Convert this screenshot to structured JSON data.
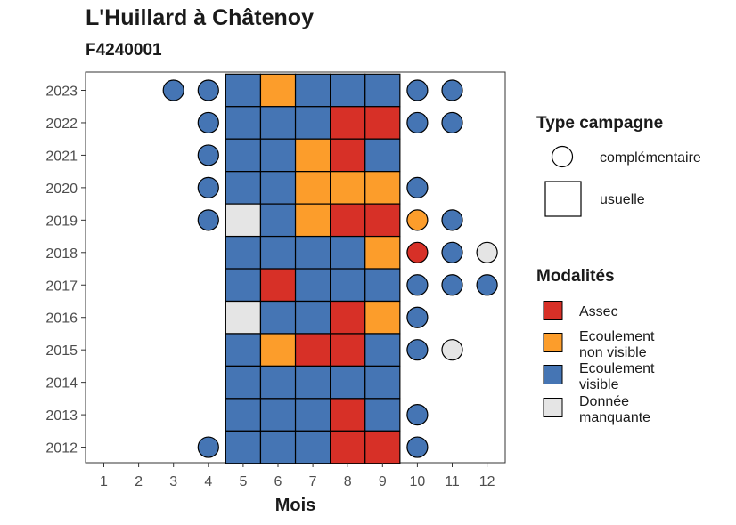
{
  "title": "L'Huillard à Châtenoy",
  "subtitle": "F4240001",
  "colors": {
    "Assec": "#d73027",
    "Ecoulement non visible": "#fc9d2b",
    "Ecoulement visible": "#4575b4",
    "Donnée manquante": "#e5e5e5"
  },
  "legend": {
    "type_title": "Type campagne",
    "type_items": [
      {
        "shape": "circle",
        "label": "complémentaire"
      },
      {
        "shape": "square",
        "label": "usuelle"
      }
    ],
    "mod_title": "Modalités",
    "mod_items": [
      {
        "key": "Assec",
        "lines": [
          "Assec"
        ]
      },
      {
        "key": "Ecoulement non visible",
        "lines": [
          "Ecoulement",
          "non visible"
        ]
      },
      {
        "key": "Ecoulement visible",
        "lines": [
          "Ecoulement",
          "visible"
        ]
      },
      {
        "key": "Donnée manquante",
        "lines": [
          "Donnée",
          "manquante"
        ]
      }
    ]
  },
  "chart_data": {
    "type": "heatmap",
    "xlabel": "Mois",
    "ylabel": "",
    "x_ticks": [
      1,
      2,
      3,
      4,
      5,
      6,
      7,
      8,
      9,
      10,
      11,
      12
    ],
    "y_ticks": [
      2012,
      2013,
      2014,
      2015,
      2016,
      2017,
      2018,
      2019,
      2020,
      2021,
      2022,
      2023
    ],
    "usuelle_months": [
      5,
      6,
      7,
      8,
      9
    ],
    "observations": [
      {
        "year": 2023,
        "type": "complémentaire",
        "month": 3,
        "value": "Ecoulement visible"
      },
      {
        "year": 2023,
        "type": "complémentaire",
        "month": 4,
        "value": "Ecoulement visible"
      },
      {
        "year": 2023,
        "type": "usuelle",
        "month": 5,
        "value": "Ecoulement visible"
      },
      {
        "year": 2023,
        "type": "usuelle",
        "month": 6,
        "value": "Ecoulement non visible"
      },
      {
        "year": 2023,
        "type": "usuelle",
        "month": 7,
        "value": "Ecoulement visible"
      },
      {
        "year": 2023,
        "type": "usuelle",
        "month": 8,
        "value": "Ecoulement visible"
      },
      {
        "year": 2023,
        "type": "usuelle",
        "month": 9,
        "value": "Ecoulement visible"
      },
      {
        "year": 2023,
        "type": "complémentaire",
        "month": 10,
        "value": "Ecoulement visible"
      },
      {
        "year": 2023,
        "type": "complémentaire",
        "month": 11,
        "value": "Ecoulement visible"
      },
      {
        "year": 2022,
        "type": "complémentaire",
        "month": 4,
        "value": "Ecoulement visible"
      },
      {
        "year": 2022,
        "type": "usuelle",
        "month": 5,
        "value": "Ecoulement visible"
      },
      {
        "year": 2022,
        "type": "usuelle",
        "month": 6,
        "value": "Ecoulement visible"
      },
      {
        "year": 2022,
        "type": "usuelle",
        "month": 7,
        "value": "Ecoulement visible"
      },
      {
        "year": 2022,
        "type": "usuelle",
        "month": 8,
        "value": "Assec"
      },
      {
        "year": 2022,
        "type": "usuelle",
        "month": 9,
        "value": "Assec"
      },
      {
        "year": 2022,
        "type": "complémentaire",
        "month": 10,
        "value": "Ecoulement visible"
      },
      {
        "year": 2022,
        "type": "complémentaire",
        "month": 11,
        "value": "Ecoulement visible"
      },
      {
        "year": 2021,
        "type": "complémentaire",
        "month": 4,
        "value": "Ecoulement visible"
      },
      {
        "year": 2021,
        "type": "usuelle",
        "month": 5,
        "value": "Ecoulement visible"
      },
      {
        "year": 2021,
        "type": "usuelle",
        "month": 6,
        "value": "Ecoulement visible"
      },
      {
        "year": 2021,
        "type": "usuelle",
        "month": 7,
        "value": "Ecoulement non visible"
      },
      {
        "year": 2021,
        "type": "usuelle",
        "month": 8,
        "value": "Assec"
      },
      {
        "year": 2021,
        "type": "usuelle",
        "month": 9,
        "value": "Ecoulement visible"
      },
      {
        "year": 2020,
        "type": "complémentaire",
        "month": 4,
        "value": "Ecoulement visible"
      },
      {
        "year": 2020,
        "type": "usuelle",
        "month": 5,
        "value": "Ecoulement visible"
      },
      {
        "year": 2020,
        "type": "usuelle",
        "month": 6,
        "value": "Ecoulement visible"
      },
      {
        "year": 2020,
        "type": "usuelle",
        "month": 7,
        "value": "Ecoulement non visible"
      },
      {
        "year": 2020,
        "type": "usuelle",
        "month": 8,
        "value": "Ecoulement non visible"
      },
      {
        "year": 2020,
        "type": "usuelle",
        "month": 9,
        "value": "Ecoulement non visible"
      },
      {
        "year": 2020,
        "type": "complémentaire",
        "month": 10,
        "value": "Ecoulement visible"
      },
      {
        "year": 2019,
        "type": "complémentaire",
        "month": 4,
        "value": "Ecoulement visible"
      },
      {
        "year": 2019,
        "type": "usuelle",
        "month": 5,
        "value": "Donnée manquante"
      },
      {
        "year": 2019,
        "type": "usuelle",
        "month": 6,
        "value": "Ecoulement visible"
      },
      {
        "year": 2019,
        "type": "usuelle",
        "month": 7,
        "value": "Ecoulement non visible"
      },
      {
        "year": 2019,
        "type": "usuelle",
        "month": 8,
        "value": "Assec"
      },
      {
        "year": 2019,
        "type": "usuelle",
        "month": 9,
        "value": "Assec"
      },
      {
        "year": 2019,
        "type": "complémentaire",
        "month": 10,
        "value": "Ecoulement non visible"
      },
      {
        "year": 2019,
        "type": "complémentaire",
        "month": 11,
        "value": "Ecoulement visible"
      },
      {
        "year": 2018,
        "type": "usuelle",
        "month": 5,
        "value": "Ecoulement visible"
      },
      {
        "year": 2018,
        "type": "usuelle",
        "month": 6,
        "value": "Ecoulement visible"
      },
      {
        "year": 2018,
        "type": "usuelle",
        "month": 7,
        "value": "Ecoulement visible"
      },
      {
        "year": 2018,
        "type": "usuelle",
        "month": 8,
        "value": "Ecoulement visible"
      },
      {
        "year": 2018,
        "type": "usuelle",
        "month": 9,
        "value": "Ecoulement non visible"
      },
      {
        "year": 2018,
        "type": "complémentaire",
        "month": 10,
        "value": "Assec"
      },
      {
        "year": 2018,
        "type": "complémentaire",
        "month": 11,
        "value": "Ecoulement visible"
      },
      {
        "year": 2018,
        "type": "complémentaire",
        "month": 12,
        "value": "Donnée manquante"
      },
      {
        "year": 2017,
        "type": "usuelle",
        "month": 5,
        "value": "Ecoulement visible"
      },
      {
        "year": 2017,
        "type": "usuelle",
        "month": 6,
        "value": "Assec"
      },
      {
        "year": 2017,
        "type": "usuelle",
        "month": 7,
        "value": "Ecoulement visible"
      },
      {
        "year": 2017,
        "type": "usuelle",
        "month": 8,
        "value": "Ecoulement visible"
      },
      {
        "year": 2017,
        "type": "usuelle",
        "month": 9,
        "value": "Ecoulement visible"
      },
      {
        "year": 2017,
        "type": "complémentaire",
        "month": 10,
        "value": "Ecoulement visible"
      },
      {
        "year": 2017,
        "type": "complémentaire",
        "month": 11,
        "value": "Ecoulement visible"
      },
      {
        "year": 2017,
        "type": "complémentaire",
        "month": 12,
        "value": "Ecoulement visible"
      },
      {
        "year": 2016,
        "type": "usuelle",
        "month": 5,
        "value": "Donnée manquante"
      },
      {
        "year": 2016,
        "type": "usuelle",
        "month": 6,
        "value": "Ecoulement visible"
      },
      {
        "year": 2016,
        "type": "usuelle",
        "month": 7,
        "value": "Ecoulement visible"
      },
      {
        "year": 2016,
        "type": "usuelle",
        "month": 8,
        "value": "Assec"
      },
      {
        "year": 2016,
        "type": "usuelle",
        "month": 9,
        "value": "Ecoulement non visible"
      },
      {
        "year": 2016,
        "type": "complémentaire",
        "month": 10,
        "value": "Ecoulement visible"
      },
      {
        "year": 2015,
        "type": "usuelle",
        "month": 5,
        "value": "Ecoulement visible"
      },
      {
        "year": 2015,
        "type": "usuelle",
        "month": 6,
        "value": "Ecoulement non visible"
      },
      {
        "year": 2015,
        "type": "usuelle",
        "month": 7,
        "value": "Assec"
      },
      {
        "year": 2015,
        "type": "usuelle",
        "month": 8,
        "value": "Assec"
      },
      {
        "year": 2015,
        "type": "usuelle",
        "month": 9,
        "value": "Ecoulement visible"
      },
      {
        "year": 2015,
        "type": "complémentaire",
        "month": 10,
        "value": "Ecoulement visible"
      },
      {
        "year": 2015,
        "type": "complémentaire",
        "month": 11,
        "value": "Donnée manquante"
      },
      {
        "year": 2014,
        "type": "usuelle",
        "month": 5,
        "value": "Ecoulement visible"
      },
      {
        "year": 2014,
        "type": "usuelle",
        "month": 6,
        "value": "Ecoulement visible"
      },
      {
        "year": 2014,
        "type": "usuelle",
        "month": 7,
        "value": "Ecoulement visible"
      },
      {
        "year": 2014,
        "type": "usuelle",
        "month": 8,
        "value": "Ecoulement visible"
      },
      {
        "year": 2014,
        "type": "usuelle",
        "month": 9,
        "value": "Ecoulement visible"
      },
      {
        "year": 2013,
        "type": "usuelle",
        "month": 5,
        "value": "Ecoulement visible"
      },
      {
        "year": 2013,
        "type": "usuelle",
        "month": 6,
        "value": "Ecoulement visible"
      },
      {
        "year": 2013,
        "type": "usuelle",
        "month": 7,
        "value": "Ecoulement visible"
      },
      {
        "year": 2013,
        "type": "usuelle",
        "month": 8,
        "value": "Assec"
      },
      {
        "year": 2013,
        "type": "usuelle",
        "month": 9,
        "value": "Ecoulement visible"
      },
      {
        "year": 2013,
        "type": "complémentaire",
        "month": 10,
        "value": "Ecoulement visible"
      },
      {
        "year": 2012,
        "type": "complémentaire",
        "month": 4,
        "value": "Ecoulement visible"
      },
      {
        "year": 2012,
        "type": "usuelle",
        "month": 5,
        "value": "Ecoulement visible"
      },
      {
        "year": 2012,
        "type": "usuelle",
        "month": 6,
        "value": "Ecoulement visible"
      },
      {
        "year": 2012,
        "type": "usuelle",
        "month": 7,
        "value": "Ecoulement visible"
      },
      {
        "year": 2012,
        "type": "usuelle",
        "month": 8,
        "value": "Assec"
      },
      {
        "year": 2012,
        "type": "usuelle",
        "month": 9,
        "value": "Assec"
      },
      {
        "year": 2012,
        "type": "complémentaire",
        "month": 10,
        "value": "Ecoulement visible"
      }
    ]
  }
}
